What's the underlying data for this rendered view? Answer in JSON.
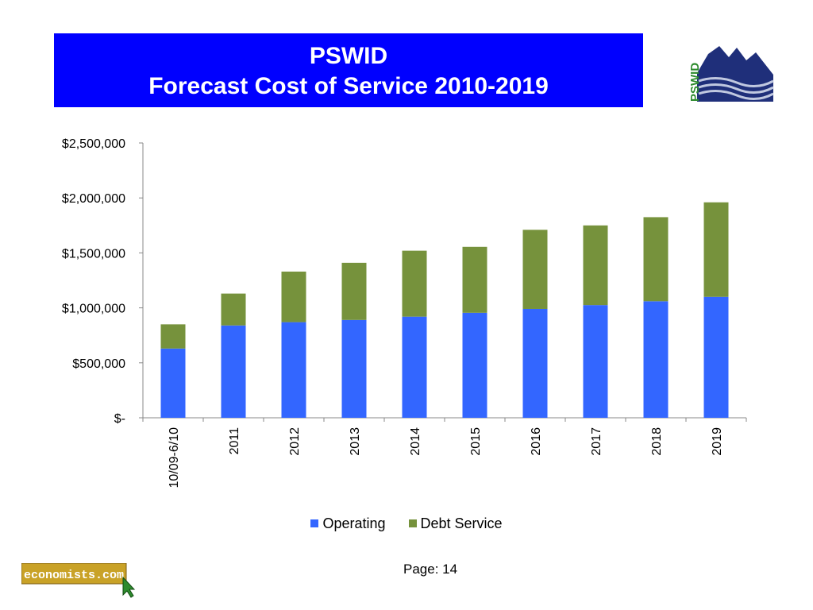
{
  "header": {
    "title_line1": "PSWID",
    "title_line2": "Forecast Cost of Service 2010-2019"
  },
  "logo": {
    "text": "PSWID"
  },
  "footer": {
    "logo_text": "economists.com",
    "page_label": "Page: 14"
  },
  "colors": {
    "title_bg": "#0000ff",
    "operating": "#3366ff",
    "debt_service": "#76923c",
    "logo_navy": "#1f2f7a",
    "logo_green": "#2e8b2e"
  },
  "chart_data": {
    "type": "bar",
    "stacked": true,
    "categories": [
      "10/09-6/10",
      "2011",
      "2012",
      "2013",
      "2014",
      "2015",
      "2016",
      "2017",
      "2018",
      "2019"
    ],
    "series": [
      {
        "name": "Operating",
        "values": [
          630000,
          840000,
          870000,
          890000,
          920000,
          955000,
          990000,
          1025000,
          1060000,
          1100000
        ]
      },
      {
        "name": "Debt Service",
        "values": [
          220000,
          290000,
          460000,
          520000,
          600000,
          600000,
          720000,
          725000,
          765000,
          860000
        ]
      }
    ],
    "ylim": [
      0,
      2500000
    ],
    "yticks": [
      0,
      500000,
      1000000,
      1500000,
      2000000,
      2500000
    ],
    "ytick_labels": [
      "$-",
      "$500,000",
      "$1,000,000",
      "$1,500,000",
      "$2,000,000",
      "$2,500,000"
    ],
    "legend_position": "bottom",
    "grid": false
  }
}
